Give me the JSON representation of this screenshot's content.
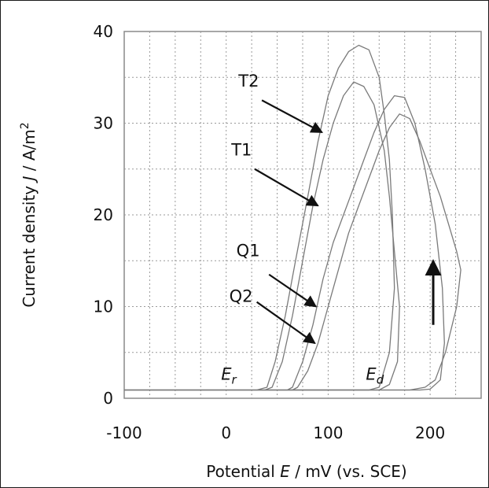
{
  "chart_data": {
    "type": "line",
    "xlabel": {
      "pre": "Potential ",
      "var": "E",
      "post": " / mV  (vs. SCE)"
    },
    "ylabel": {
      "pre": "Current density ",
      "var": "J",
      "post": " / A/m",
      "sup": "2"
    },
    "xlim": [
      -100,
      250
    ],
    "ylim": [
      0,
      40
    ],
    "x_ticks": [
      -100,
      0,
      100,
      200
    ],
    "y_ticks": [
      0,
      10,
      20,
      30,
      40
    ],
    "grid": "dotted",
    "series": [
      {
        "name": "T2",
        "x": [
          -100,
          30,
          40,
          48,
          58,
          68,
          80,
          90,
          100,
          110,
          120,
          130,
          140,
          150,
          155,
          160,
          163,
          165,
          160,
          150,
          140,
          120,
          100,
          0,
          -100
        ],
        "y": [
          0.9,
          0.9,
          1.2,
          4,
          9,
          15,
          22,
          28,
          33,
          36,
          37.8,
          38.5,
          38,
          35,
          31,
          26,
          20,
          12,
          5,
          1.2,
          0.9,
          0.9,
          0.9,
          0.9,
          0.9
        ]
      },
      {
        "name": "T1",
        "x": [
          -100,
          38,
          45,
          55,
          65,
          75,
          85,
          95,
          105,
          115,
          125,
          135,
          145,
          155,
          160,
          165,
          170,
          168,
          160,
          150,
          120,
          0,
          -100
        ],
        "y": [
          0.9,
          0.9,
          1.2,
          4,
          9,
          15,
          21,
          26,
          30,
          33,
          34.5,
          34,
          32,
          27,
          22,
          16,
          10,
          4,
          1.5,
          0.9,
          0.9,
          0.9,
          0.9
        ]
      },
      {
        "name": "Q1",
        "x": [
          -100,
          60,
          65,
          75,
          85,
          95,
          105,
          115,
          125,
          135,
          145,
          155,
          165,
          175,
          185,
          195,
          205,
          212,
          214,
          210,
          200,
          190,
          180,
          160,
          100,
          0,
          -100
        ],
        "y": [
          0.9,
          0.9,
          1.2,
          4,
          8,
          13,
          17,
          20,
          23,
          26,
          29,
          31.5,
          33,
          32.8,
          30,
          25,
          19,
          12,
          6,
          2,
          1,
          0.9,
          0.9,
          0.9,
          0.9,
          0.9,
          0.9
        ]
      },
      {
        "name": "Q2",
        "x": [
          -100,
          65,
          70,
          80,
          90,
          100,
          110,
          120,
          130,
          140,
          150,
          160,
          170,
          180,
          190,
          200,
          210,
          218,
          226,
          230,
          226,
          215,
          205,
          195,
          180,
          160,
          100,
          0,
          -100
        ],
        "y": [
          0.9,
          0.9,
          1.2,
          3,
          6,
          10,
          14,
          18,
          21,
          24,
          27,
          29.5,
          31,
          30.5,
          28,
          25,
          22,
          19,
          16,
          14,
          10,
          5,
          2,
          1.2,
          0.9,
          0.9,
          0.9,
          0.9,
          0.9
        ]
      }
    ],
    "annotations": [
      {
        "label": "T2",
        "text_x": 12,
        "text_y": 34,
        "arrow_from": [
          35,
          32.5
        ],
        "arrow_to": [
          94,
          29
        ]
      },
      {
        "label": "T1",
        "text_x": 5,
        "text_y": 26.5,
        "arrow_from": [
          28,
          25
        ],
        "arrow_to": [
          90,
          21
        ]
      },
      {
        "label": "Q1",
        "text_x": 10,
        "text_y": 15.5,
        "arrow_from": [
          42,
          13.5
        ],
        "arrow_to": [
          88,
          10
        ]
      },
      {
        "label": "Q2",
        "text_x": 3,
        "text_y": 10.5,
        "arrow_from": [
          30,
          10.5
        ],
        "arrow_to": [
          87,
          6
        ]
      },
      {
        "label": "E",
        "sub": "r",
        "text_x": -5,
        "text_y": 2
      },
      {
        "label": "E",
        "sub": "d",
        "text_x": 137,
        "text_y": 2
      }
    ],
    "direction_arrow": {
      "from": [
        203,
        8
      ],
      "to": [
        203,
        15
      ]
    }
  }
}
